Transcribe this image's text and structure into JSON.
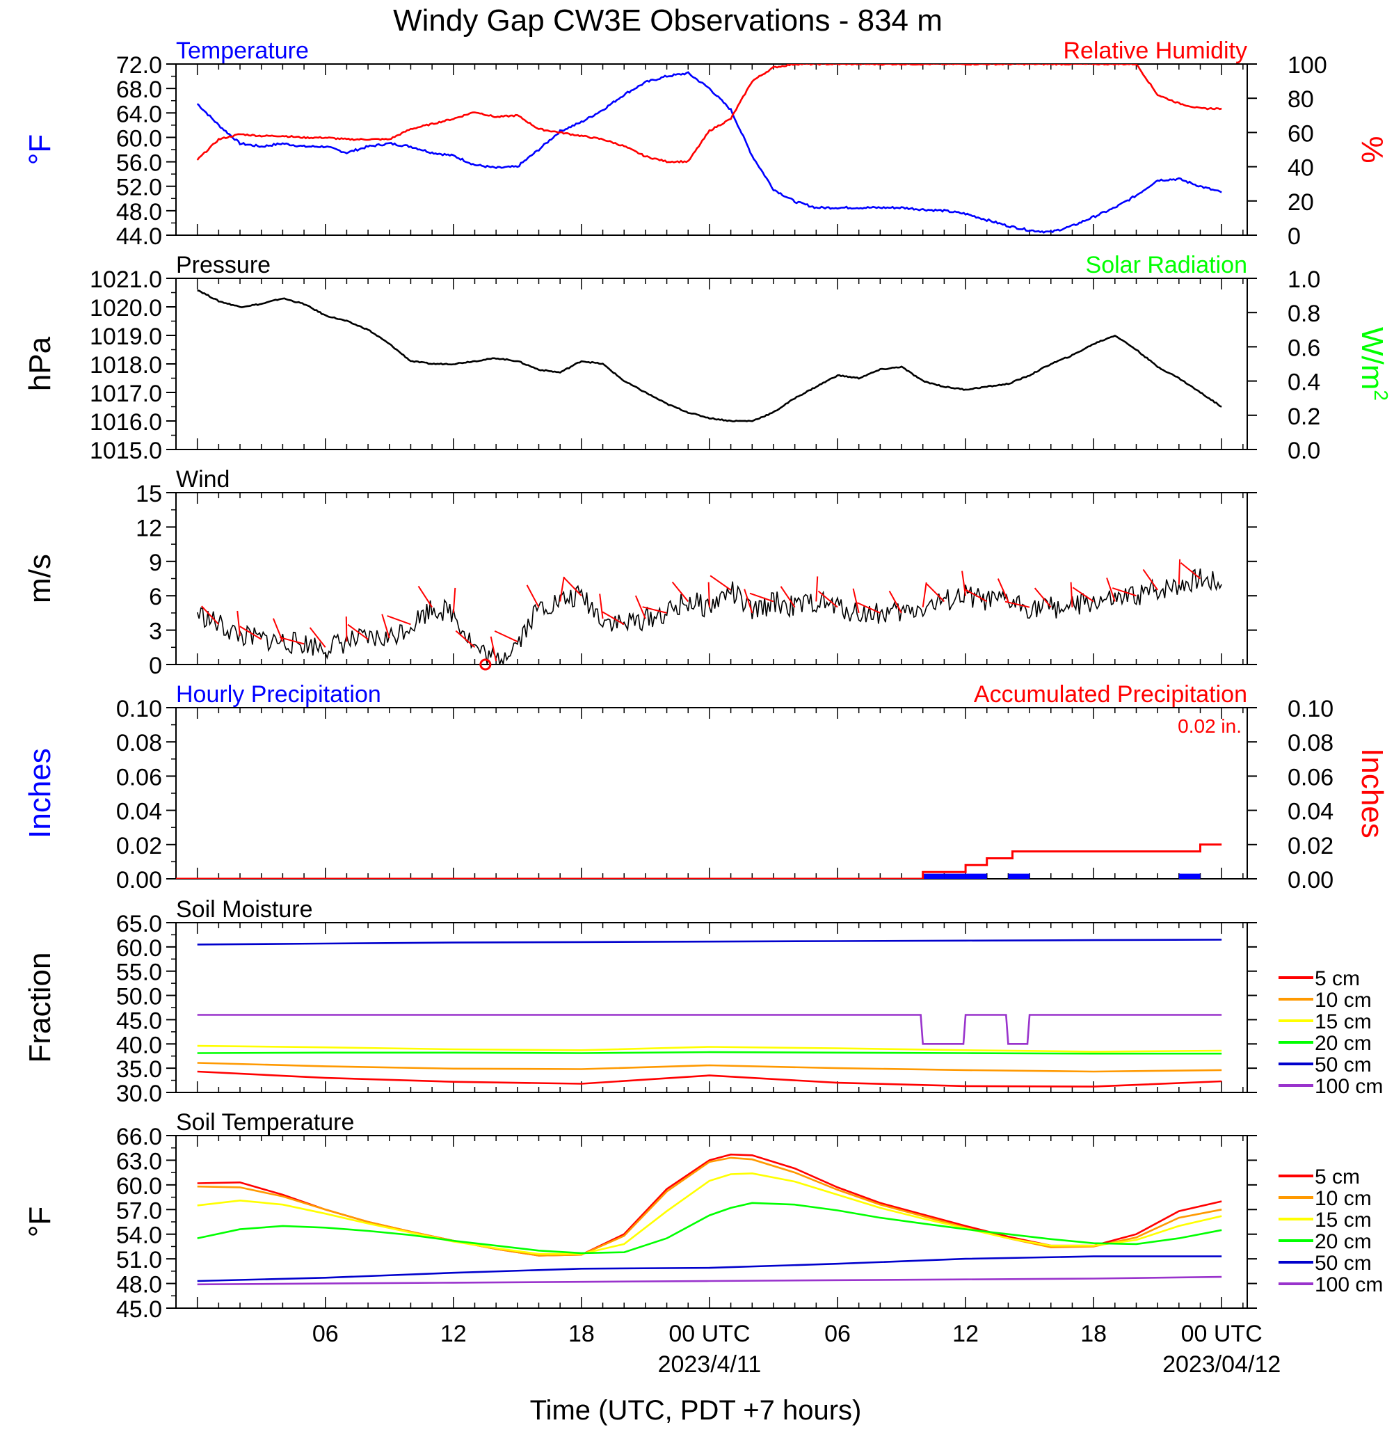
{
  "title": "Windy Gap CW3E Observations - 834 m",
  "x_axis": {
    "label": "Time (UTC, PDT +7 hours)",
    "range_hours": [
      -23,
      25
    ],
    "ticks": [
      {
        "h": 6,
        "label": "06",
        "date": ""
      },
      {
        "h": 12,
        "label": "12",
        "date": ""
      },
      {
        "h": 18,
        "label": "18",
        "date": ""
      },
      {
        "h": 24,
        "label": "00 UTC",
        "date": "2023/4/11"
      },
      {
        "h": 30,
        "label": "06",
        "date": ""
      },
      {
        "h": 36,
        "label": "12",
        "date": ""
      },
      {
        "h": 42,
        "label": "18",
        "date": ""
      },
      {
        "h": 48,
        "label": "00 UTC",
        "date": "2023/04/12"
      }
    ]
  },
  "legend_depths": [
    "5 cm",
    "10 cm",
    "15 cm",
    "20 cm",
    "50 cm",
    "100 cm"
  ],
  "colors": {
    "blue": "#0000ff",
    "red": "#ff0000",
    "green": "#00ff00",
    "black": "#000000",
    "orange": "#ff9900",
    "yellow": "#ffff00",
    "purple": "#9933cc",
    "navy": "#0000cc"
  },
  "chart_data": [
    {
      "id": "temp_rh",
      "type": "line",
      "title_left": "Temperature",
      "title_right": "Relative Humidity",
      "ylabel_left": "°F",
      "ylabel_right": "%",
      "ylim_left": [
        44,
        72
      ],
      "ylim_right": [
        0,
        100
      ],
      "yticks_left": [
        "72.0",
        "68.0",
        "64.0",
        "60.0",
        "56.0",
        "52.0",
        "48.0",
        "44.0"
      ],
      "yticks_right": [
        "100",
        "80",
        "60",
        "40",
        "20",
        "0"
      ],
      "series": [
        {
          "axis": "left",
          "color": "#0000ff",
          "x": [
            0,
            1,
            2,
            3,
            4,
            5,
            6,
            7,
            8,
            9,
            10,
            11,
            12,
            13,
            14,
            15,
            16,
            17,
            18,
            19,
            20,
            21,
            22,
            23,
            24,
            25,
            26,
            27,
            28,
            29,
            30,
            31,
            32,
            33,
            34,
            35,
            36,
            37,
            38,
            39,
            40,
            41,
            42,
            43,
            44,
            45,
            46,
            47,
            48
          ],
          "y": [
            65.5,
            62,
            59,
            58.5,
            59,
            58.5,
            58.5,
            57.5,
            58.5,
            59,
            58.5,
            57.5,
            57,
            55.5,
            55,
            55.2,
            58,
            61,
            62.5,
            64.5,
            67,
            69,
            70,
            70.5,
            68,
            64.5,
            57,
            51.5,
            49.5,
            48.5,
            48.5,
            48.5,
            48.5,
            48.5,
            48.2,
            48,
            47.5,
            46.5,
            45.5,
            44.8,
            44.5,
            45.5,
            47,
            48.5,
            50.5,
            53,
            53.2,
            52,
            51
          ]
        },
        {
          "axis": "right",
          "color": "#ff0000",
          "x": [
            0,
            1,
            2,
            3,
            4,
            5,
            6,
            7,
            8,
            9,
            10,
            11,
            12,
            13,
            14,
            15,
            16,
            17,
            18,
            19,
            20,
            21,
            22,
            23,
            24,
            25,
            26,
            27,
            28,
            29,
            30,
            31,
            32,
            33,
            34,
            35,
            36,
            37,
            38,
            39,
            40,
            41,
            42,
            43,
            44,
            45,
            46,
            47,
            48
          ],
          "y": [
            44,
            56,
            59,
            58,
            58,
            57,
            57,
            56,
            56,
            56,
            62,
            65,
            68,
            72,
            69,
            70,
            62,
            60,
            58,
            56,
            52,
            46,
            43,
            43,
            61,
            68,
            90,
            98,
            100,
            100,
            100,
            100,
            100,
            100,
            100,
            100,
            100,
            100,
            100,
            100,
            100,
            100,
            100,
            100,
            100,
            82,
            77,
            74,
            74
          ]
        }
      ]
    },
    {
      "id": "pressure",
      "type": "line",
      "title_left": "Pressure",
      "title_right": "Solar Radiation",
      "ylabel_left": "hPa",
      "ylabel_right": "W/m",
      "ylabel_right_sup": "2",
      "ylim_left": [
        1015,
        1021
      ],
      "ylim_right": [
        0,
        1
      ],
      "yticks_left": [
        "1021.0",
        "1020.0",
        "1019.0",
        "1018.0",
        "1017.0",
        "1016.0",
        "1015.0"
      ],
      "yticks_right": [
        "1.0",
        "0.8",
        "0.6",
        "0.4",
        "0.2",
        "0.0"
      ],
      "series": [
        {
          "axis": "left",
          "color": "#000000",
          "x": [
            0,
            1,
            2,
            3,
            4,
            5,
            6,
            7,
            8,
            9,
            10,
            11,
            12,
            13,
            14,
            15,
            16,
            17,
            18,
            19,
            20,
            21,
            22,
            23,
            24,
            25,
            26,
            27,
            28,
            29,
            30,
            31,
            32,
            33,
            34,
            35,
            36,
            37,
            38,
            39,
            40,
            41,
            42,
            43,
            44,
            45,
            46,
            47,
            48
          ],
          "y": [
            1020.6,
            1020.2,
            1020,
            1020.1,
            1020.3,
            1020.1,
            1019.7,
            1019.5,
            1019.2,
            1018.7,
            1018.1,
            1018,
            1018,
            1018.1,
            1018.2,
            1018.1,
            1017.8,
            1017.7,
            1018.1,
            1018.0,
            1017.4,
            1017.0,
            1016.6,
            1016.3,
            1016.1,
            1016.0,
            1016.0,
            1016.3,
            1016.8,
            1017.2,
            1017.6,
            1017.5,
            1017.8,
            1017.9,
            1017.4,
            1017.2,
            1017.1,
            1017.2,
            1017.3,
            1017.6,
            1018.0,
            1018.3,
            1018.7,
            1019.0,
            1018.5,
            1017.9,
            1017.5,
            1017.0,
            1016.5
          ]
        }
      ]
    },
    {
      "id": "wind",
      "type": "line",
      "title_left": "Wind",
      "ylabel_left": "m/s",
      "ylim_left": [
        0,
        15
      ],
      "yticks_left": [
        "15",
        "12",
        "9",
        "6",
        "3",
        "0"
      ],
      "series": [
        {
          "axis": "left",
          "color": "#000000",
          "x": [
            0,
            1,
            2,
            3,
            4,
            5,
            6,
            7,
            8,
            9,
            10,
            11,
            12,
            13,
            14,
            15,
            16,
            17,
            18,
            19,
            20,
            21,
            22,
            23,
            24,
            25,
            26,
            27,
            28,
            29,
            30,
            31,
            32,
            33,
            34,
            35,
            36,
            37,
            38,
            39,
            40,
            41,
            42,
            43,
            44,
            45,
            46,
            47,
            48
          ],
          "y": [
            4.5,
            3.5,
            2.5,
            2.2,
            2,
            1.8,
            1.5,
            2,
            2.2,
            2.3,
            3.5,
            5,
            4.5,
            1.5,
            0.3,
            2,
            5,
            5.5,
            6,
            4,
            3.5,
            4,
            4.5,
            5.5,
            5,
            6.5,
            4.5,
            5.5,
            5,
            5.5,
            5,
            4.5,
            4.5,
            4.5,
            5,
            5.5,
            6,
            5.5,
            5.5,
            5,
            5,
            5,
            5.5,
            5.5,
            6,
            6.5,
            7,
            7.5,
            7
          ]
        }
      ],
      "barb_color": "#ff0000",
      "calm_marker_hour": 13.5
    },
    {
      "id": "precip",
      "type": "line",
      "title_left": "Hourly Precipitation",
      "title_right": "Accumulated Precipitation",
      "ylabel_left": "Inches",
      "ylabel_right": "Inches",
      "annotation": "0.02 in.",
      "ylim_left": [
        0,
        0.1
      ],
      "ylim_right": [
        0,
        0.1
      ],
      "yticks_left": [
        "0.10",
        "0.08",
        "0.06",
        "0.04",
        "0.02",
        "0.00"
      ],
      "yticks_right": [
        "0.10",
        "0.08",
        "0.06",
        "0.04",
        "0.02",
        "0.00"
      ],
      "hourly_bars": [
        {
          "start": 34,
          "end": 35,
          "value": 0.003
        },
        {
          "start": 35,
          "end": 36,
          "value": 0.003
        },
        {
          "start": 36,
          "end": 37,
          "value": 0.003
        },
        {
          "start": 38,
          "end": 39,
          "value": 0.003
        },
        {
          "start": 46,
          "end": 47,
          "value": 0.003
        }
      ],
      "accumulated": {
        "x": [
          -1,
          34,
          34,
          36,
          36,
          37,
          37,
          38.2,
          38.2,
          47,
          47,
          48
        ],
        "y": [
          0,
          0,
          0.004,
          0.004,
          0.008,
          0.008,
          0.012,
          0.012,
          0.016,
          0.016,
          0.02,
          0.02
        ]
      }
    },
    {
      "id": "soil_moisture",
      "type": "line",
      "title_left": "Soil Moisture",
      "ylabel_left": "Fraction",
      "ylim_left": [
        30,
        65
      ],
      "yticks_left": [
        "65.0",
        "60.0",
        "55.0",
        "50.0",
        "45.0",
        "40.0",
        "35.0",
        "30.0"
      ],
      "series": [
        {
          "name": "5 cm",
          "color": "#ff0000",
          "x": [
            0,
            6,
            12,
            18,
            24,
            30,
            36,
            42,
            48
          ],
          "y": [
            34.3,
            33,
            32.2,
            31.8,
            33.5,
            32,
            31.3,
            31.2,
            32.3
          ]
        },
        {
          "name": "10 cm",
          "color": "#ff9900",
          "x": [
            0,
            6,
            12,
            18,
            24,
            30,
            36,
            42,
            48
          ],
          "y": [
            36.1,
            35.4,
            34.9,
            34.8,
            35.6,
            35,
            34.6,
            34.3,
            34.6
          ]
        },
        {
          "name": "15 cm",
          "color": "#ffff00",
          "x": [
            0,
            6,
            12,
            18,
            24,
            30,
            36,
            42,
            48
          ],
          "y": [
            39.6,
            39.3,
            38.9,
            38.7,
            39.4,
            39.1,
            38.7,
            38.4,
            38.6
          ]
        },
        {
          "name": "20 cm",
          "color": "#00ff00",
          "x": [
            0,
            6,
            12,
            18,
            24,
            30,
            36,
            42,
            48
          ],
          "y": [
            38.1,
            38.2,
            38.2,
            38.1,
            38.3,
            38.2,
            38.1,
            38,
            38
          ]
        },
        {
          "name": "50 cm",
          "color": "#0000cc",
          "x": [
            0,
            6,
            12,
            18,
            24,
            30,
            36,
            42,
            48
          ],
          "y": [
            60.5,
            60.7,
            60.9,
            61,
            61.1,
            61.2,
            61.3,
            61.4,
            61.5
          ]
        },
        {
          "name": "100 cm",
          "color": "#9933cc",
          "x": [
            0,
            6,
            12,
            18,
            24,
            30,
            33.9,
            34,
            35.9,
            36,
            37.9,
            38,
            38.9,
            39,
            48
          ],
          "y": [
            46,
            46,
            46,
            46,
            46,
            46,
            46,
            40,
            40,
            46,
            46,
            40,
            40,
            46,
            46
          ]
        }
      ]
    },
    {
      "id": "soil_temp",
      "type": "line",
      "title_left": "Soil Temperature",
      "ylabel_left": "°F",
      "ylim_left": [
        45,
        66
      ],
      "yticks_left": [
        "66.0",
        "63.0",
        "60.0",
        "57.0",
        "54.0",
        "51.0",
        "48.0",
        "45.0"
      ],
      "series": [
        {
          "name": "5 cm",
          "color": "#ff0000",
          "x": [
            0,
            2,
            4,
            6,
            8,
            10,
            12,
            14,
            16,
            18,
            20,
            22,
            24,
            25,
            26,
            28,
            30,
            32,
            34,
            36,
            38,
            40,
            42,
            44,
            46,
            48
          ],
          "y": [
            60.2,
            60.3,
            58.8,
            57,
            55.5,
            54.3,
            53.2,
            52.2,
            51.4,
            51.5,
            54,
            59.5,
            63,
            63.7,
            63.6,
            62,
            59.7,
            57.8,
            56.4,
            55,
            53.7,
            52.6,
            52.6,
            54,
            56.8,
            58
          ]
        },
        {
          "name": "10 cm",
          "color": "#ff9900",
          "x": [
            0,
            2,
            4,
            6,
            8,
            10,
            12,
            14,
            16,
            18,
            20,
            22,
            24,
            25,
            26,
            28,
            30,
            32,
            34,
            36,
            38,
            40,
            42,
            44,
            46,
            48
          ],
          "y": [
            59.8,
            59.7,
            58.6,
            57,
            55.5,
            54.3,
            53.2,
            52.2,
            51.4,
            51.5,
            53.8,
            59.2,
            62.8,
            63.3,
            63.1,
            61.5,
            59.4,
            57.6,
            56.2,
            54.8,
            53.5,
            52.4,
            52.5,
            53.6,
            56,
            57
          ]
        },
        {
          "name": "15 cm",
          "color": "#ffff00",
          "x": [
            0,
            2,
            4,
            6,
            8,
            10,
            12,
            14,
            16,
            18,
            20,
            22,
            24,
            25,
            26,
            28,
            30,
            32,
            34,
            36,
            38,
            40,
            42,
            44,
            46,
            48
          ],
          "y": [
            57.5,
            58.1,
            57.6,
            56.5,
            55.3,
            54.2,
            53.1,
            52.3,
            51.6,
            51.6,
            52.8,
            56.8,
            60.5,
            61.3,
            61.4,
            60.4,
            58.8,
            57.2,
            55.9,
            54.7,
            53.5,
            52.6,
            52.6,
            53.3,
            55,
            56.2
          ]
        },
        {
          "name": "20 cm",
          "color": "#00ff00",
          "x": [
            0,
            2,
            4,
            6,
            8,
            10,
            12,
            14,
            16,
            18,
            20,
            22,
            24,
            25,
            26,
            28,
            30,
            32,
            34,
            36,
            38,
            40,
            42,
            44,
            46,
            48
          ],
          "y": [
            53.5,
            54.6,
            55,
            54.8,
            54.4,
            53.9,
            53.2,
            52.6,
            52,
            51.7,
            51.8,
            53.5,
            56.3,
            57.2,
            57.8,
            57.6,
            56.9,
            56,
            55.3,
            54.6,
            54,
            53.4,
            52.9,
            52.8,
            53.5,
            54.5
          ]
        },
        {
          "name": "50 cm",
          "color": "#0000cc",
          "x": [
            0,
            6,
            12,
            18,
            24,
            30,
            36,
            42,
            48
          ],
          "y": [
            48.3,
            48.7,
            49.3,
            49.8,
            49.9,
            50.4,
            51,
            51.3,
            51.3
          ]
        },
        {
          "name": "100 cm",
          "color": "#9933cc",
          "x": [
            0,
            6,
            12,
            18,
            24,
            30,
            36,
            42,
            48
          ],
          "y": [
            47.9,
            48,
            48.1,
            48.2,
            48.3,
            48.4,
            48.5,
            48.6,
            48.8
          ]
        }
      ]
    }
  ]
}
